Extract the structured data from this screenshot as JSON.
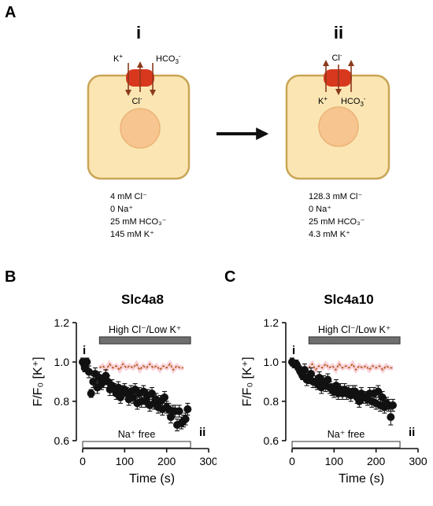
{
  "panel_a": {
    "letter": "A",
    "left": {
      "roman": "i",
      "ion_k": "K",
      "ion_k_sup": "+",
      "ion_hco3": "HCO",
      "ion_hco3_sub": "3",
      "ion_hco3_sup": "-",
      "ion_cl": "Cl",
      "ion_cl_sup": "-",
      "conditions": [
        "4 mM Cl⁻",
        "0 Na⁺",
        "25 mM HCO₃⁻",
        "145 mM K⁺"
      ]
    },
    "right": {
      "roman": "ii",
      "ion_cl": "Cl",
      "ion_cl_sup": "-",
      "ion_k": "K",
      "ion_k_sup": "+",
      "ion_hco3": "HCO",
      "ion_hco3_sub": "3",
      "ion_hco3_sup": "-",
      "conditions": [
        "128.3 mM Cl⁻",
        "0 Na⁺",
        "25 mM HCO₃⁻",
        "4.3 mM K⁺"
      ]
    },
    "colors": {
      "cell_fill": "#fbe6b3",
      "cell_stroke": "#c9a556",
      "nucleus": "#f7c58f",
      "transporter": "#d8381e",
      "arrow": "#8b3a1b"
    }
  },
  "chart_data": [
    {
      "panel_letter": "B",
      "title": "Slc4a8",
      "type": "scatter",
      "ylabel": "F/F₀ [K⁺]",
      "xlabel": "Time (s)",
      "xlim": [
        0,
        300
      ],
      "ylim": [
        0.6,
        1.2
      ],
      "xticks": [
        "0",
        "100",
        "200",
        "300"
      ],
      "yticks": [
        "0.6",
        "0.8",
        "1.0",
        "1.2"
      ],
      "high_cl_bar": {
        "label": "High Cl⁻/Low K⁺",
        "start": 40,
        "end": 257
      },
      "na_bar": {
        "label": "Na⁺ free",
        "start": 0,
        "end": 257
      },
      "marker_i": "i",
      "marker_ii": "ii",
      "series": [
        {
          "x": [
            0,
            5,
            10,
            15,
            20,
            25,
            30,
            35,
            40,
            45,
            50,
            55,
            60,
            65,
            70,
            75,
            80,
            85,
            90,
            95,
            100,
            105,
            110,
            115,
            120,
            125,
            130,
            135,
            140,
            145,
            150,
            155,
            160,
            165,
            170,
            175,
            180,
            185,
            190,
            195,
            200,
            205,
            210,
            215,
            220,
            225,
            230,
            235,
            240,
            245,
            250
          ],
          "y": [
            1.0,
            0.97,
            1.0,
            0.95,
            0.84,
            0.9,
            0.94,
            0.87,
            0.92,
            0.89,
            0.9,
            0.93,
            0.9,
            0.86,
            0.88,
            0.86,
            0.84,
            0.87,
            0.82,
            0.85,
            0.86,
            0.84,
            0.81,
            0.85,
            0.82,
            0.86,
            0.79,
            0.84,
            0.8,
            0.85,
            0.8,
            0.83,
            0.78,
            0.84,
            0.79,
            0.81,
            0.77,
            0.8,
            0.76,
            0.82,
            0.77,
            0.76,
            0.72,
            0.75,
            0.75,
            0.68,
            0.75,
            0.69,
            0.7,
            0.71,
            0.76
          ],
          "err": [
            0.02,
            0.02,
            0.02,
            0.03,
            0.02,
            0.03,
            0.03,
            0.03,
            0.03,
            0.03,
            0.03,
            0.03,
            0.03,
            0.03,
            0.03,
            0.03,
            0.03,
            0.03,
            0.03,
            0.03,
            0.03,
            0.03,
            0.03,
            0.03,
            0.03,
            0.03,
            0.03,
            0.03,
            0.03,
            0.03,
            0.03,
            0.03,
            0.03,
            0.03,
            0.03,
            0.03,
            0.03,
            0.03,
            0.03,
            0.03,
            0.03,
            0.03,
            0.03,
            0.03,
            0.03,
            0.03,
            0.03,
            0.03,
            0.03,
            0.03,
            0.03
          ]
        },
        {
          "x": [
            40,
            48,
            56,
            64,
            72,
            80,
            88,
            96,
            104,
            112,
            120,
            128,
            136,
            144,
            152,
            160,
            168,
            176,
            184,
            192,
            200,
            208,
            216,
            224,
            232,
            240
          ],
          "y": [
            0.97,
            0.98,
            0.96,
            0.99,
            0.97,
            0.98,
            0.96,
            0.99,
            0.97,
            0.98,
            0.97,
            0.99,
            0.96,
            0.98,
            0.97,
            0.99,
            0.97,
            0.98,
            0.96,
            0.98,
            0.97,
            0.99,
            0.96,
            0.98,
            0.97,
            0.97
          ],
          "err": []
        }
      ]
    },
    {
      "panel_letter": "C",
      "title": "Slc4a10",
      "type": "scatter",
      "ylabel": "F/F₀ [K⁺]",
      "xlabel": "Time (s)",
      "xlim": [
        0,
        300
      ],
      "ylim": [
        0.6,
        1.2
      ],
      "xticks": [
        "0",
        "100",
        "200",
        "300"
      ],
      "yticks": [
        "0.6",
        "0.8",
        "1.0",
        "1.2"
      ],
      "high_cl_bar": {
        "label": "High Cl⁻/Low K⁺",
        "start": 40,
        "end": 257
      },
      "na_bar": {
        "label": "Na⁺ free",
        "start": 0,
        "end": 257
      },
      "marker_i": "i",
      "marker_ii": "ii",
      "series": [
        {
          "x": [
            0,
            5,
            10,
            15,
            20,
            25,
            30,
            35,
            40,
            45,
            50,
            55,
            60,
            65,
            70,
            75,
            80,
            85,
            90,
            95,
            100,
            105,
            110,
            115,
            120,
            125,
            130,
            135,
            140,
            145,
            150,
            155,
            160,
            165,
            170,
            175,
            180,
            185,
            190,
            195,
            200,
            205,
            210,
            215,
            220,
            225,
            230,
            235,
            240
          ],
          "y": [
            1.0,
            0.99,
            0.99,
            0.97,
            0.95,
            0.93,
            0.96,
            0.91,
            0.92,
            0.94,
            0.9,
            0.9,
            0.89,
            0.92,
            0.87,
            0.9,
            0.88,
            0.91,
            0.87,
            0.86,
            0.85,
            0.88,
            0.84,
            0.86,
            0.84,
            0.86,
            0.84,
            0.85,
            0.83,
            0.85,
            0.85,
            0.82,
            0.8,
            0.84,
            0.82,
            0.82,
            0.81,
            0.84,
            0.8,
            0.84,
            0.79,
            0.85,
            0.78,
            0.82,
            0.77,
            0.79,
            0.78,
            0.72,
            0.78
          ],
          "err": [
            0.02,
            0.02,
            0.02,
            0.02,
            0.02,
            0.02,
            0.03,
            0.03,
            0.03,
            0.03,
            0.03,
            0.03,
            0.03,
            0.03,
            0.03,
            0.03,
            0.03,
            0.03,
            0.03,
            0.03,
            0.03,
            0.03,
            0.03,
            0.03,
            0.03,
            0.03,
            0.03,
            0.03,
            0.03,
            0.03,
            0.03,
            0.03,
            0.03,
            0.03,
            0.03,
            0.03,
            0.03,
            0.03,
            0.03,
            0.03,
            0.03,
            0.03,
            0.03,
            0.03,
            0.03,
            0.03,
            0.03,
            0.04,
            0.03
          ]
        },
        {
          "x": [
            40,
            48,
            56,
            64,
            72,
            80,
            88,
            96,
            104,
            112,
            120,
            128,
            136,
            144,
            152,
            160,
            168,
            176,
            184,
            192,
            200,
            208,
            216,
            224,
            232,
            240
          ],
          "y": [
            0.97,
            0.99,
            0.96,
            0.98,
            0.97,
            0.99,
            0.97,
            0.98,
            0.96,
            0.99,
            0.97,
            0.98,
            0.97,
            0.99,
            0.96,
            0.98,
            0.97,
            0.98,
            0.96,
            0.98,
            0.97,
            0.98,
            0.96,
            0.98,
            0.97,
            0.97
          ],
          "err": []
        }
      ]
    }
  ]
}
